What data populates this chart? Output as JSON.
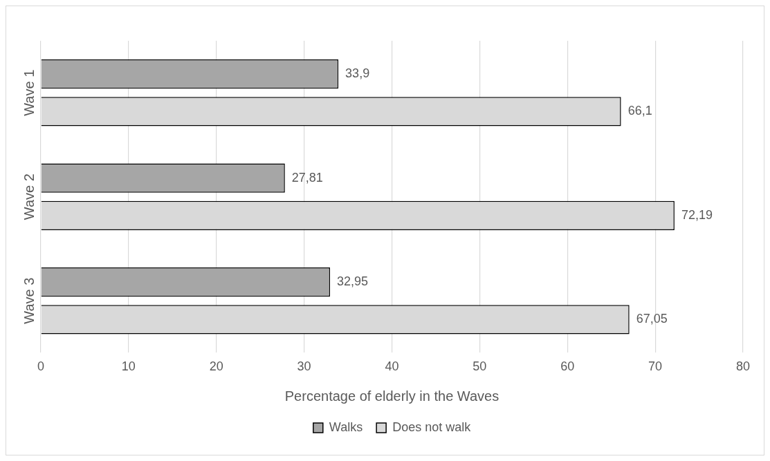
{
  "chart_data": {
    "type": "bar",
    "orientation": "horizontal",
    "xlabel": "Percentage of elderly in the Waves",
    "categories": [
      "Wave 1",
      "Wave 2",
      "Wave 3"
    ],
    "series": [
      {
        "name": "Walks",
        "color": "#a6a6a6",
        "values": [
          33.9,
          27.81,
          32.95
        ],
        "value_labels": [
          "33,9",
          "27,81",
          "32,95"
        ]
      },
      {
        "name": "Does not walk",
        "color": "#d9d9d9",
        "values": [
          66.1,
          72.19,
          67.05
        ],
        "value_labels": [
          "66,1",
          "72,19",
          "67,05"
        ]
      }
    ],
    "xlim": [
      0,
      80
    ],
    "xticks": [
      0,
      10,
      20,
      30,
      40,
      50,
      60,
      70,
      80
    ],
    "grid": "x",
    "legend": "bottom"
  }
}
